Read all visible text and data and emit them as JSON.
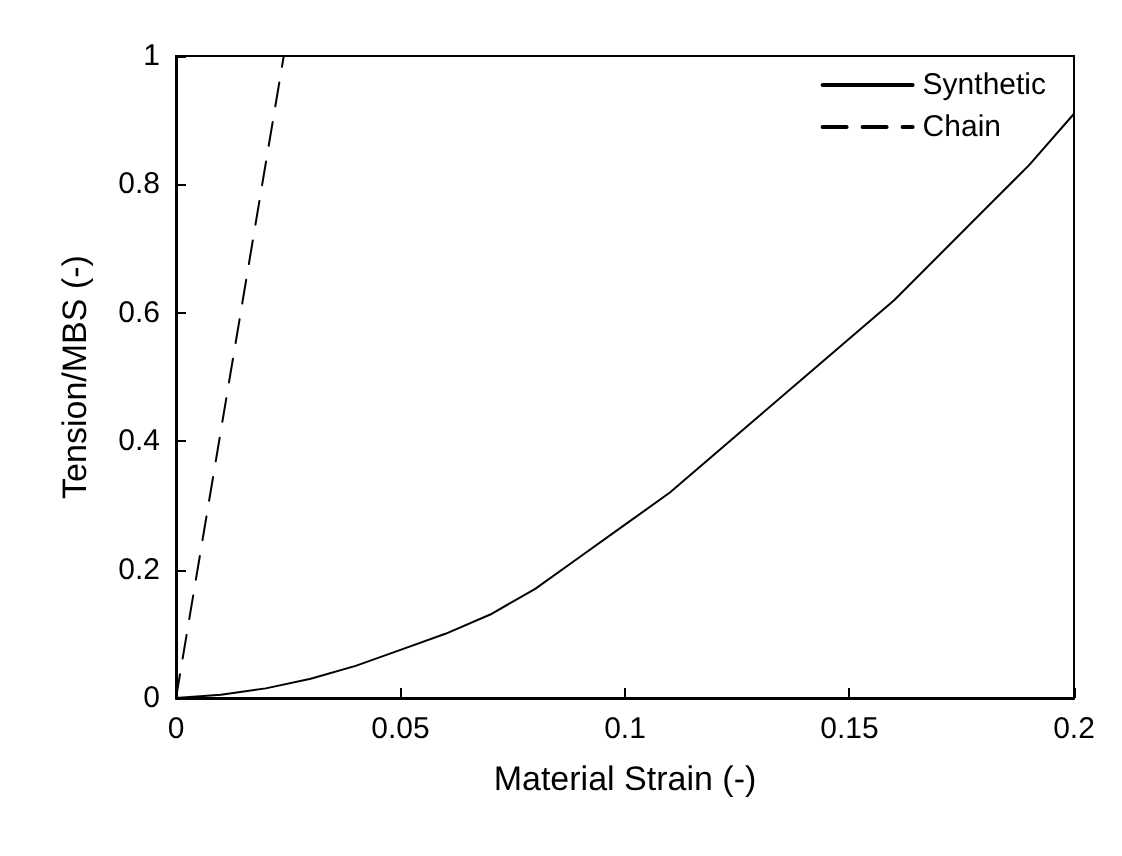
{
  "chart_data": {
    "type": "line",
    "xlabel": "Material Strain (-)",
    "ylabel": "Tension/MBS (-)",
    "xlim": [
      0,
      0.2
    ],
    "xticks": [
      0,
      0.05,
      0.1,
      0.15,
      0.2
    ],
    "ylim": [
      0,
      1
    ],
    "yticks": [
      0,
      0.2,
      0.4,
      0.6,
      0.8,
      1
    ],
    "grid": false,
    "legend": "top right",
    "marker": "none",
    "series": [
      {
        "name": "Synthetic",
        "color": "#000000",
        "line_style": "solid",
        "x": [
          0,
          0.01,
          0.02,
          0.03,
          0.04,
          0.05,
          0.06,
          0.07,
          0.08,
          0.09,
          0.1,
          0.11,
          0.12,
          0.13,
          0.14,
          0.15,
          0.16,
          0.17,
          0.18,
          0.19,
          0.2
        ],
        "values": [
          0,
          0.005,
          0.015,
          0.03,
          0.05,
          0.075,
          0.1,
          0.13,
          0.17,
          0.22,
          0.27,
          0.32,
          0.38,
          0.44,
          0.5,
          0.56,
          0.62,
          0.69,
          0.76,
          0.83,
          0.91
        ]
      },
      {
        "name": "Chain",
        "color": "#000000",
        "line_style": "dashed",
        "x": [
          0,
          0.024
        ],
        "values": [
          0,
          1
        ]
      }
    ]
  }
}
